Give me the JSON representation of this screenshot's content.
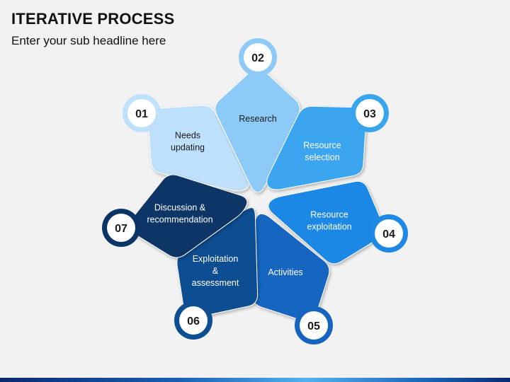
{
  "header": {
    "title": "ITERATIVE PROCESS",
    "subtitle": "Enter your sub headline here"
  },
  "steps": [
    {
      "number": "01",
      "lines": [
        "Needs",
        "updating"
      ],
      "color": "#bfe0fb",
      "text_color": "#1a1a1a"
    },
    {
      "number": "02",
      "lines": [
        "Research"
      ],
      "color": "#8ecaf8",
      "text_color": "#1a1a1a"
    },
    {
      "number": "03",
      "lines": [
        "Resource",
        "selection"
      ],
      "color": "#3aa5ef",
      "text_color": "#ffffff"
    },
    {
      "number": "04",
      "lines": [
        "Resource",
        "exploitation"
      ],
      "color": "#1e88e5",
      "text_color": "#ffffff"
    },
    {
      "number": "05",
      "lines": [
        "Activities"
      ],
      "color": "#1565c0",
      "text_color": "#ffffff"
    },
    {
      "number": "06",
      "lines": [
        "Exploitation",
        "&",
        "assessment"
      ],
      "color": "#0d4d92",
      "text_color": "#ffffff"
    },
    {
      "number": "07",
      "lines": [
        "Discussion &",
        "recommendation"
      ],
      "color": "#0a3566",
      "text_color": "#ffffff"
    }
  ]
}
